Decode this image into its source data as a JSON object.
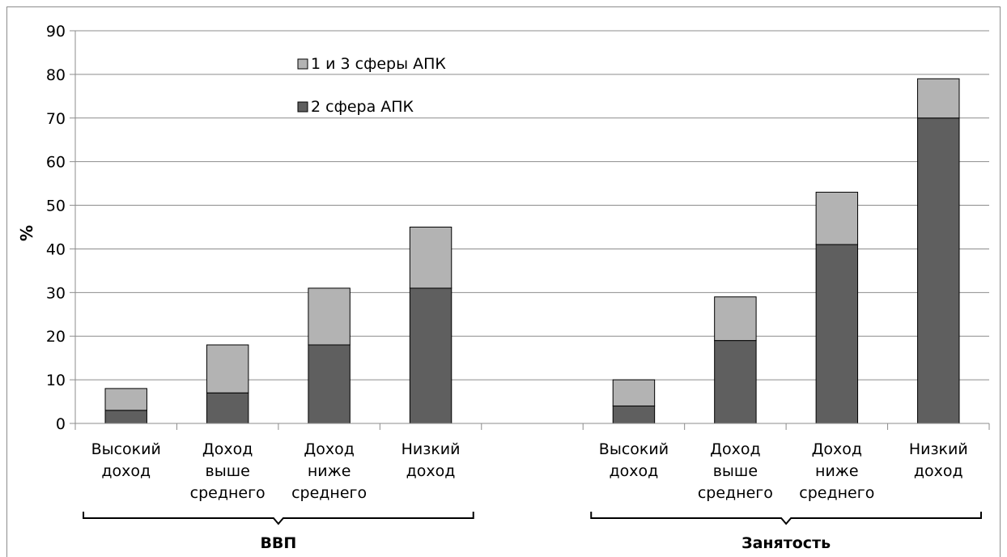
{
  "chart_data": {
    "type": "bar",
    "stacked": true,
    "ylabel": "%",
    "ylim": [
      0,
      90
    ],
    "yticks": [
      0,
      10,
      20,
      30,
      40,
      50,
      60,
      70,
      80,
      90
    ],
    "grid": true,
    "legend_position": "top-center",
    "groups": [
      {
        "label": "ВВП",
        "categories": [
          [
            "Высокий",
            "доход"
          ],
          [
            "Доход",
            "выше",
            "среднего"
          ],
          [
            "Доход",
            "ниже",
            "среднего"
          ],
          [
            "Низкий",
            "доход"
          ]
        ],
        "series": [
          {
            "name": "2 сфера АПК",
            "values": [
              3,
              7,
              18,
              31
            ]
          },
          {
            "name": "1 и 3 сферы АПК",
            "values": [
              5,
              11,
              13,
              14
            ]
          }
        ]
      },
      {
        "label": "Занятость",
        "categories": [
          [
            "Высокий",
            "доход"
          ],
          [
            "Доход",
            "выше",
            "среднего"
          ],
          [
            "Доход",
            "ниже",
            "среднего"
          ],
          [
            "Низкий",
            "доход"
          ]
        ],
        "series": [
          {
            "name": "2 сфера АПК",
            "values": [
              4,
              19,
              41,
              70
            ]
          },
          {
            "name": "1 и 3 сферы АПК",
            "values": [
              6,
              10,
              12,
              9
            ]
          }
        ]
      }
    ],
    "legend": [
      {
        "name": "1 и 3 сферы АПК",
        "color": "#b3b3b3"
      },
      {
        "name": "2 сфера АПК",
        "color": "#5f5f5f"
      }
    ],
    "colors": {
      "2 сфера АПК": "#5f5f5f",
      "1 и 3 сферы АПК": "#b3b3b3"
    }
  }
}
